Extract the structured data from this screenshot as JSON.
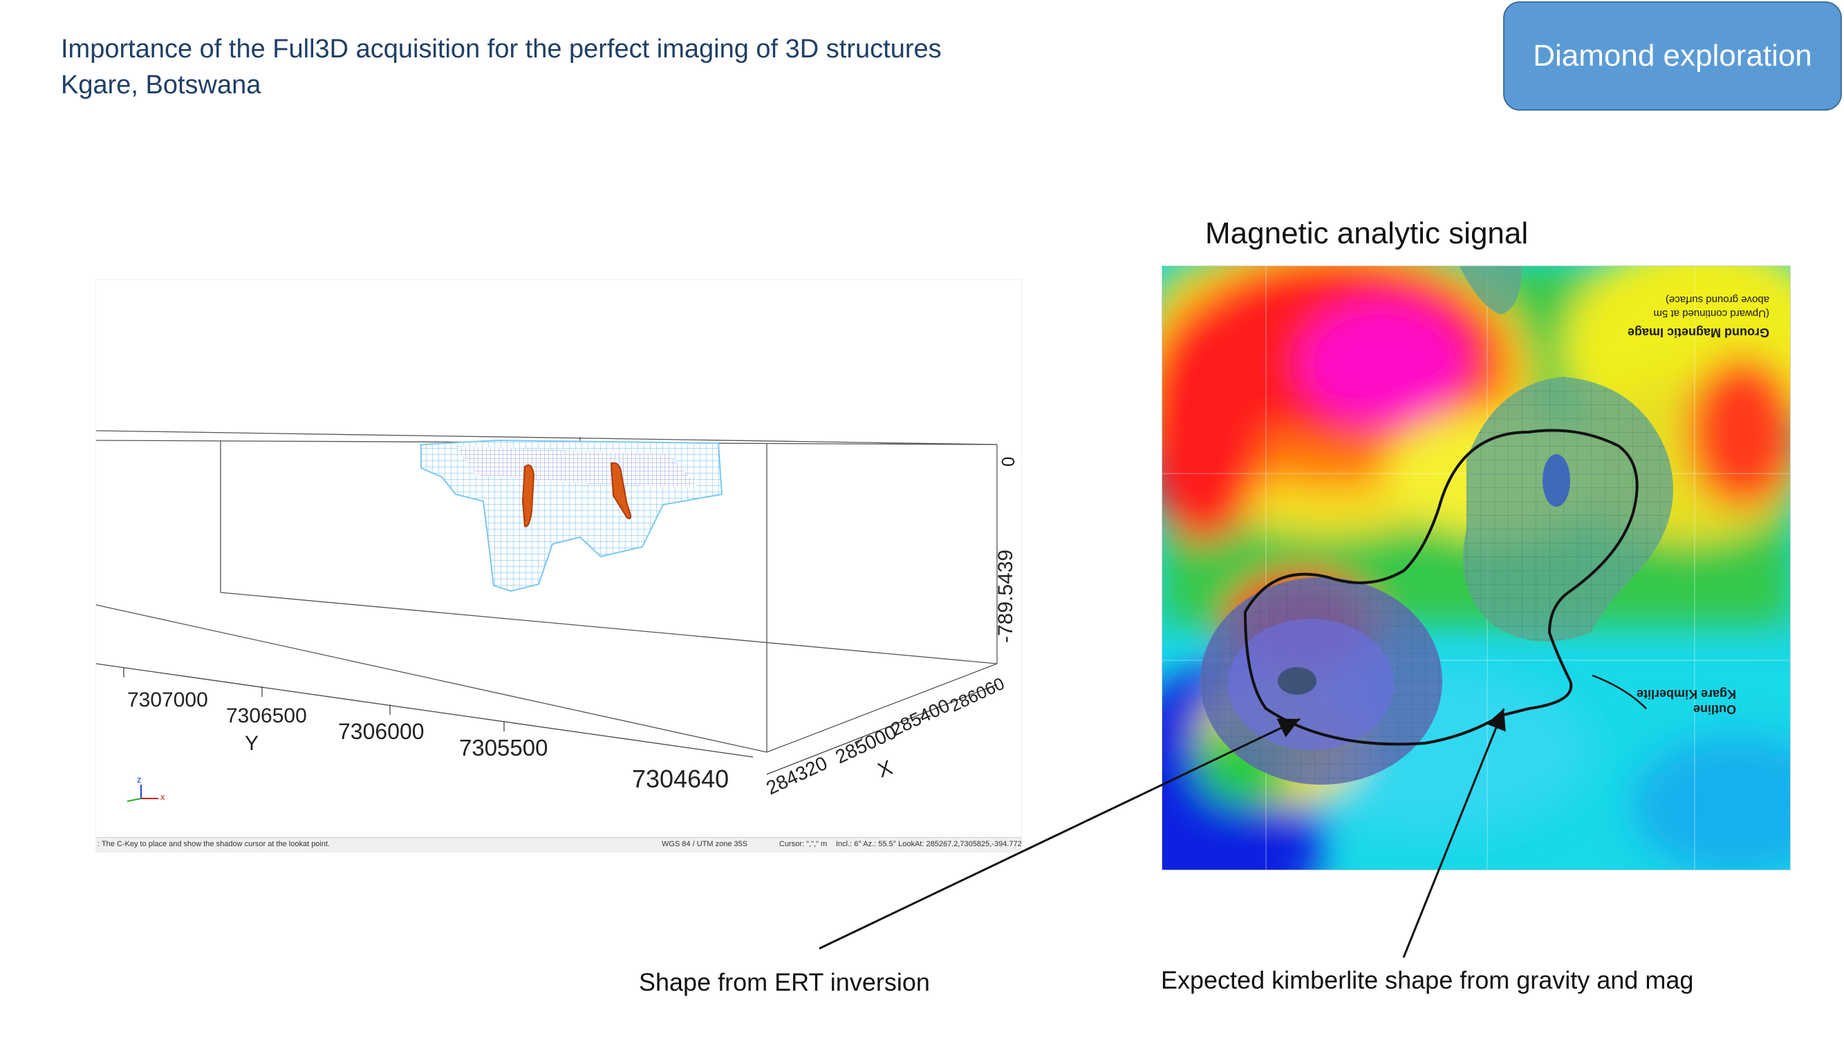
{
  "header": {
    "title_line1": "Importance of the Full3D acquisition for the perfect imaging of 3D structures",
    "title_line2": "Kgare, Botswana"
  },
  "badge": {
    "label": "Diamond exploration"
  },
  "model_view": {
    "y_ticks": [
      "7307000",
      "7306500",
      "7306000",
      "7305500",
      "7304640"
    ],
    "y_axis_label": "Y",
    "x_ticks": [
      "284320",
      "285000",
      "285400",
      "286060"
    ],
    "x_axis_label": "X",
    "z_ticks": [
      "-789.5439",
      "0"
    ],
    "axis_triad": {
      "z": "z",
      "x": "x"
    },
    "status_hint": ": The C-Key to place and show the shadow cursor at the lookat point.",
    "status_crs": "WGS 84 / UTM zone 35S",
    "status_cursor": "Cursor: \",\",\" m",
    "status_look": "Incl.: 6° Az.: 55.5° LookAt: 285267.2,7305825,-394.772 m"
  },
  "mag_panel": {
    "title": "Magnetic analytic signal",
    "map_title": "Ground Magnetic Image",
    "map_subtitle1": "(Upward continued at 5m",
    "map_subtitle2": "above ground surface)",
    "outline_label1": "Outline",
    "outline_label2": "Kgare Kimberlite"
  },
  "captions": {
    "ert": "Shape from ERT inversion",
    "expected": "Expected kimberlite shape from gravity and mag"
  },
  "colors": {
    "title_blue": "#1f3f66",
    "badge_fill": "#5b9bd5",
    "body_orange": "#d85a14",
    "mesh_blue": "#7ec8f0"
  }
}
